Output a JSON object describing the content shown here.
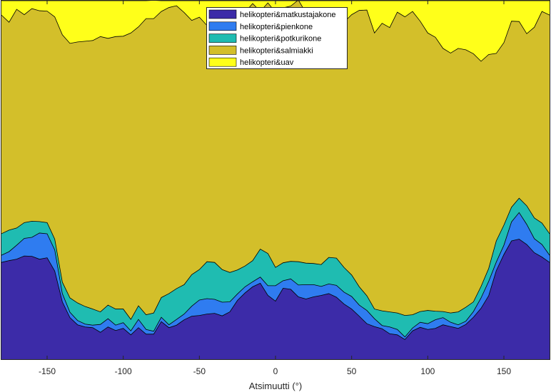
{
  "chart_data": {
    "type": "area",
    "stacked": true,
    "normalized": true,
    "title": "",
    "xlabel": "Atsimuutti (°)",
    "ylabel": "",
    "xlim": [
      -180,
      180
    ],
    "ylim": [
      0,
      1
    ],
    "yticks_visible": false,
    "xticks": [
      -150,
      -100,
      -50,
      0,
      50,
      100,
      150
    ],
    "grid": false,
    "legend": {
      "placement": "top-center"
    },
    "x": [
      -180,
      -175,
      -170,
      -165,
      -160,
      -155,
      -150,
      -145,
      -140,
      -135,
      -130,
      -125,
      -120,
      -115,
      -110,
      -105,
      -100,
      -95,
      -90,
      -85,
      -80,
      -75,
      -70,
      -65,
      -60,
      -55,
      -50,
      -45,
      -40,
      -35,
      -30,
      -25,
      -20,
      -15,
      -10,
      -5,
      0,
      5,
      10,
      15,
      20,
      25,
      30,
      35,
      40,
      45,
      50,
      55,
      60,
      65,
      70,
      75,
      80,
      85,
      90,
      95,
      100,
      105,
      110,
      115,
      120,
      125,
      130,
      135,
      140,
      145,
      150,
      155,
      160,
      165,
      170,
      175,
      180
    ],
    "series": [
      {
        "name": "helikopteri&matkustajakone",
        "color": "#3c2ba8",
        "values": [
          0.27,
          0.275,
          0.279,
          0.288,
          0.287,
          0.279,
          0.283,
          0.246,
          0.16,
          0.116,
          0.096,
          0.09,
          0.088,
          0.075,
          0.09,
          0.08,
          0.086,
          0.068,
          0.088,
          0.07,
          0.07,
          0.105,
          0.088,
          0.095,
          0.11,
          0.12,
          0.122,
          0.126,
          0.128,
          0.121,
          0.132,
          0.164,
          0.185,
          0.202,
          0.212,
          0.178,
          0.162,
          0.198,
          0.195,
          0.174,
          0.168,
          0.174,
          0.178,
          0.183,
          0.173,
          0.154,
          0.14,
          0.12,
          0.099,
          0.091,
          0.085,
          0.071,
          0.068,
          0.055,
          0.079,
          0.089,
          0.083,
          0.086,
          0.096,
          0.091,
          0.086,
          0.097,
          0.117,
          0.142,
          0.177,
          0.247,
          0.292,
          0.33,
          0.335,
          0.32,
          0.297,
          0.285,
          0.27
        ]
      },
      {
        "name": "helikopteri&pienkone",
        "color": "#2f7cf0",
        "values": [
          0.02,
          0.025,
          0.039,
          0.049,
          0.053,
          0.073,
          0.067,
          0.059,
          0.023,
          0.015,
          0.012,
          0.008,
          0.007,
          0.022,
          0.023,
          0.015,
          0.016,
          0.011,
          0.023,
          0.013,
          0.008,
          0.012,
          0.008,
          0.016,
          0.016,
          0.028,
          0.043,
          0.043,
          0.039,
          0.038,
          0.028,
          0.018,
          0.017,
          0.014,
          0.017,
          0.027,
          0.043,
          0.021,
          0.029,
          0.033,
          0.04,
          0.034,
          0.025,
          0.027,
          0.033,
          0.033,
          0.035,
          0.031,
          0.037,
          0.022,
          0.009,
          0.019,
          0.015,
          0.007,
          0.008,
          0.014,
          0.016,
          0.024,
          0.02,
          0.012,
          0.01,
          0.009,
          0.016,
          0.029,
          0.04,
          0.024,
          0.026,
          0.053,
          0.074,
          0.056,
          0.039,
          0.035,
          0.02
        ]
      },
      {
        "name": "helikopteri&potkurikone",
        "color": "#1fbcb1",
        "values": [
          0.06,
          0.06,
          0.048,
          0.044,
          0.045,
          0.032,
          0.031,
          0.03,
          0.032,
          0.04,
          0.049,
          0.049,
          0.045,
          0.035,
          0.038,
          0.045,
          0.038,
          0.032,
          0.038,
          0.041,
          0.051,
          0.055,
          0.087,
          0.086,
          0.082,
          0.088,
          0.085,
          0.103,
          0.103,
          0.091,
          0.082,
          0.067,
          0.058,
          0.059,
          0.078,
          0.09,
          0.051,
          0.05,
          0.049,
          0.065,
          0.06,
          0.059,
          0.061,
          0.074,
          0.076,
          0.069,
          0.06,
          0.051,
          0.041,
          0.027,
          0.041,
          0.042,
          0.046,
          0.06,
          0.037,
          0.03,
          0.037,
          0.024,
          0.017,
          0.026,
          0.036,
          0.039,
          0.027,
          0.032,
          0.036,
          0.059,
          0.056,
          0.041,
          0.04,
          0.052,
          0.058,
          0.06,
          0.06
        ]
      },
      {
        "name": "helikopteri&salmiakki",
        "color": "#d3bf2a",
        "values": [
          0.61,
          0.58,
          0.61,
          0.58,
          0.593,
          0.588,
          0.59,
          0.62,
          0.69,
          0.71,
          0.728,
          0.74,
          0.749,
          0.768,
          0.744,
          0.76,
          0.761,
          0.799,
          0.778,
          0.826,
          0.821,
          0.798,
          0.798,
          0.789,
          0.759,
          0.709,
          0.704,
          0.659,
          0.666,
          0.694,
          0.722,
          0.713,
          0.708,
          0.717,
          0.663,
          0.699,
          0.712,
          0.711,
          0.712,
          0.73,
          0.698,
          0.681,
          0.691,
          0.651,
          0.651,
          0.684,
          0.726,
          0.771,
          0.797,
          0.77,
          0.802,
          0.793,
          0.839,
          0.833,
          0.846,
          0.81,
          0.774,
          0.764,
          0.734,
          0.725,
          0.735,
          0.718,
          0.692,
          0.628,
          0.597,
          0.523,
          0.509,
          0.519,
          0.493,
          0.48,
          0.532,
          0.59,
          0.61
        ]
      },
      {
        "name": "helikopteri&uav",
        "color": "#ffff1a",
        "values": [
          0.04,
          0.06,
          0.024,
          0.039,
          0.022,
          0.028,
          0.029,
          0.045,
          0.095,
          0.119,
          0.115,
          0.113,
          0.111,
          0.1,
          0.105,
          0.1,
          0.099,
          0.09,
          0.073,
          0.05,
          0.051,
          0.03,
          0.019,
          0.014,
          0.033,
          0.055,
          0.046,
          0.069,
          0.064,
          0.056,
          0.036,
          0.038,
          0.032,
          0.008,
          0.03,
          0.006,
          0.032,
          0.02,
          0.015,
          -0.002,
          0.034,
          0.052,
          0.045,
          0.065,
          0.067,
          0.06,
          0.039,
          0.027,
          0.026,
          0.09,
          0.063,
          0.075,
          0.032,
          0.045,
          0.03,
          0.057,
          0.09,
          0.102,
          0.133,
          0.146,
          0.133,
          0.137,
          0.148,
          0.169,
          0.15,
          0.147,
          0.117,
          0.057,
          0.058,
          0.092,
          0.074,
          0.03,
          0.04
        ]
      }
    ]
  }
}
